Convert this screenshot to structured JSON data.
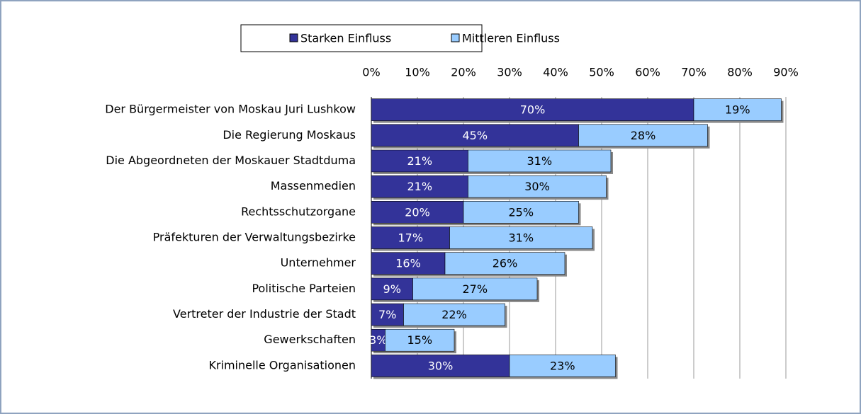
{
  "chart_data": {
    "type": "stacked_barh",
    "categories": [
      "Der Bürgermeister von Moskau Juri Lushkow",
      "Die Regierung Moskaus",
      "Die Abgeordneten der Moskauer Stadtduma",
      "Massenmedien",
      "Rechtsschutzorgane",
      "Präfekturen der Verwaltungsbezirke",
      "Unternehmer",
      "Politische Parteien",
      "Vertreter der Industrie der Stadt",
      "Gewerkschaften",
      "Kriminelle Organisationen"
    ],
    "series": [
      {
        "name": "Starken Einfluss",
        "color": "#333399",
        "label_color": "#ffffff",
        "values": [
          70,
          45,
          21,
          21,
          20,
          17,
          16,
          9,
          7,
          3,
          30
        ],
        "value_labels": [
          "70%",
          "45%",
          "21%",
          "21%",
          "20%",
          "17%",
          "16%",
          "9%",
          "7%",
          "3%",
          "30%"
        ]
      },
      {
        "name": "Mittleren Einfluss",
        "color": "#99ccff",
        "label_color": "#000000",
        "values": [
          19,
          28,
          31,
          30,
          25,
          31,
          26,
          27,
          22,
          15,
          23
        ],
        "value_labels": [
          "19%",
          "28%",
          "31%",
          "30%",
          "25%",
          "31%",
          "26%",
          "27%",
          "22%",
          "15%",
          "23%"
        ]
      }
    ],
    "xlim": [
      0,
      90
    ],
    "xticks": [
      {
        "value": 0,
        "label": "0%"
      },
      {
        "value": 10,
        "label": "10%"
      },
      {
        "value": 20,
        "label": "20%"
      },
      {
        "value": 30,
        "label": "30%"
      },
      {
        "value": 40,
        "label": "40%"
      },
      {
        "value": 50,
        "label": "50%"
      },
      {
        "value": 60,
        "label": "60%"
      },
      {
        "value": 70,
        "label": "70%"
      },
      {
        "value": 80,
        "label": "80%"
      },
      {
        "value": 90,
        "label": "90%"
      }
    ],
    "grid": true,
    "legend": "top"
  }
}
